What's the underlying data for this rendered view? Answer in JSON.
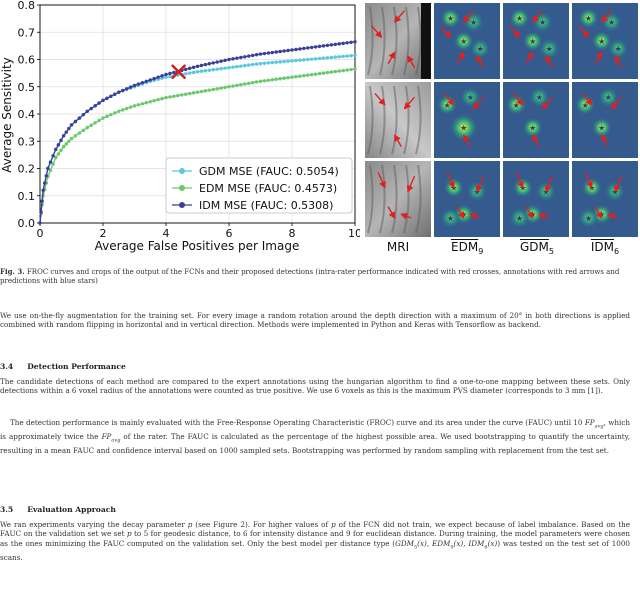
{
  "chart_data": {
    "type": "line",
    "xlabel": "Average False Positives per Image",
    "ylabel": "Average Sensitivity",
    "xlim": [
      0,
      10
    ],
    "ylim": [
      0,
      0.8
    ],
    "xticks": [
      "0",
      "2",
      "4",
      "6",
      "8",
      "10"
    ],
    "yticks": [
      "0.0",
      "0.1",
      "0.2",
      "0.3",
      "0.4",
      "0.5",
      "0.6",
      "0.7",
      "0.8"
    ],
    "grid": true,
    "legend_position": "bottom-right",
    "series": [
      {
        "name": "GDM MSE (FAUC: 0.5054)",
        "color": "#5bc8e0",
        "x": [
          0,
          0.1,
          0.25,
          0.5,
          0.75,
          1,
          1.5,
          2,
          2.5,
          3,
          3.5,
          4,
          4.5,
          5,
          6,
          7,
          8,
          9,
          10
        ],
        "y": [
          0,
          0.12,
          0.2,
          0.27,
          0.32,
          0.36,
          0.41,
          0.45,
          0.48,
          0.5,
          0.52,
          0.535,
          0.545,
          0.555,
          0.57,
          0.585,
          0.595,
          0.605,
          0.615
        ]
      },
      {
        "name": "EDM MSE (FAUC: 0.4573)",
        "color": "#6cc86c",
        "x": [
          0,
          0.1,
          0.25,
          0.5,
          0.75,
          1,
          1.5,
          2,
          2.5,
          3,
          3.5,
          4,
          4.5,
          5,
          6,
          7,
          8,
          9,
          10
        ],
        "y": [
          0,
          0.1,
          0.17,
          0.24,
          0.28,
          0.31,
          0.35,
          0.385,
          0.41,
          0.43,
          0.445,
          0.46,
          0.47,
          0.48,
          0.5,
          0.52,
          0.535,
          0.55,
          0.565
        ]
      },
      {
        "name": "IDM MSE (FAUC: 0.5308)",
        "color": "#3b3f99",
        "x": [
          0,
          0.1,
          0.25,
          0.5,
          0.75,
          1,
          1.5,
          2,
          2.5,
          3,
          3.5,
          4,
          4.5,
          5,
          6,
          7,
          8,
          9,
          10
        ],
        "y": [
          0,
          0.12,
          0.2,
          0.27,
          0.32,
          0.36,
          0.41,
          0.45,
          0.48,
          0.505,
          0.525,
          0.545,
          0.56,
          0.575,
          0.6,
          0.62,
          0.635,
          0.65,
          0.665
        ]
      }
    ],
    "annotations": [
      {
        "type": "marker",
        "shape": "x",
        "color": "#cc2222",
        "x": 4.4,
        "y": 0.555
      }
    ]
  },
  "crops": {
    "columns": [
      {
        "base": "MRI",
        "sub": "",
        "hat": false
      },
      {
        "base": "EDM",
        "sub": "9",
        "hat": true
      },
      {
        "base": "GDM",
        "sub": "5",
        "hat": true
      },
      {
        "base": "IDM",
        "sub": "6",
        "hat": true
      }
    ],
    "rows": 3
  },
  "caption": {
    "label": "Fig. 3.",
    "text": "FROC curves and crops of the output of the FCNs and their proposed detections (intra-rater performance indicated with red crosses, annotations with red arrows and predictions with blue stars)"
  },
  "para1": "We use on-the-fly augmentation for the training set. For every image a random rotation around the depth direction with a maximum of 20° in both directions is applied combined with random flipping in horizontal and in vertical direction. Methods were implemented in Python and Keras with Tensorflow as backend.",
  "section34": {
    "num": "3.4",
    "title": "Detection Performance"
  },
  "para2": "The candidate detections of each method are compared to the expert annotations using the hungarian algorithm to find a one-to-one mapping between these sets. Only detections within a 6 voxel radius of the annotations were counted as true positive. We use 6 voxels as this is the maximum PVS diameter (corresponds to 3 mm [1]).",
  "para3a": "The detection performance is mainly evaluated with the Free-Response Operating Characteristic (FROC) curve and its area under the curve (FAUC) until 10 ",
  "para3_fp": "FP",
  "para3_fp_sub": "avg",
  "para3b": ", which is approximately twice the ",
  "para3c": " of the rater. The FAUC is calculated as the percentage of the highest possible area. We used bootstrapping to quantify the uncertainty, resulting in a mean FAUC and confidence interval based on 1000 sampled sets. Bootstrapping was performed by random sampling with replacement from the test set.",
  "section35": {
    "num": "3.5",
    "title": "Evaluation Approach"
  },
  "para4a": "We ran experiments varying the decay parameter ",
  "para4_p": "p",
  "para4b": " (see Figure 2). For higher values of ",
  "para4c": " of the FCN did not train, we expect because of label imbalance. Based on the FAUC on the validation set we set ",
  "para4d": " to 5 for geodesic distance, to 6 for intensity distance and 9 for euclidean distance. During training, the model parameters were chosen as the ones minimizing the FAUC computed on the validation set. Only the best model per distance type (",
  "para4_m1": "GDM",
  "para4_m1s": "5",
  "para4_m2": "EDM",
  "para4_m2s": "9",
  "para4_m3": "IDM",
  "para4_m3s": "6",
  "para4_x": "(x)",
  "para4e": ") was tested on the test set of 1000 scans."
}
